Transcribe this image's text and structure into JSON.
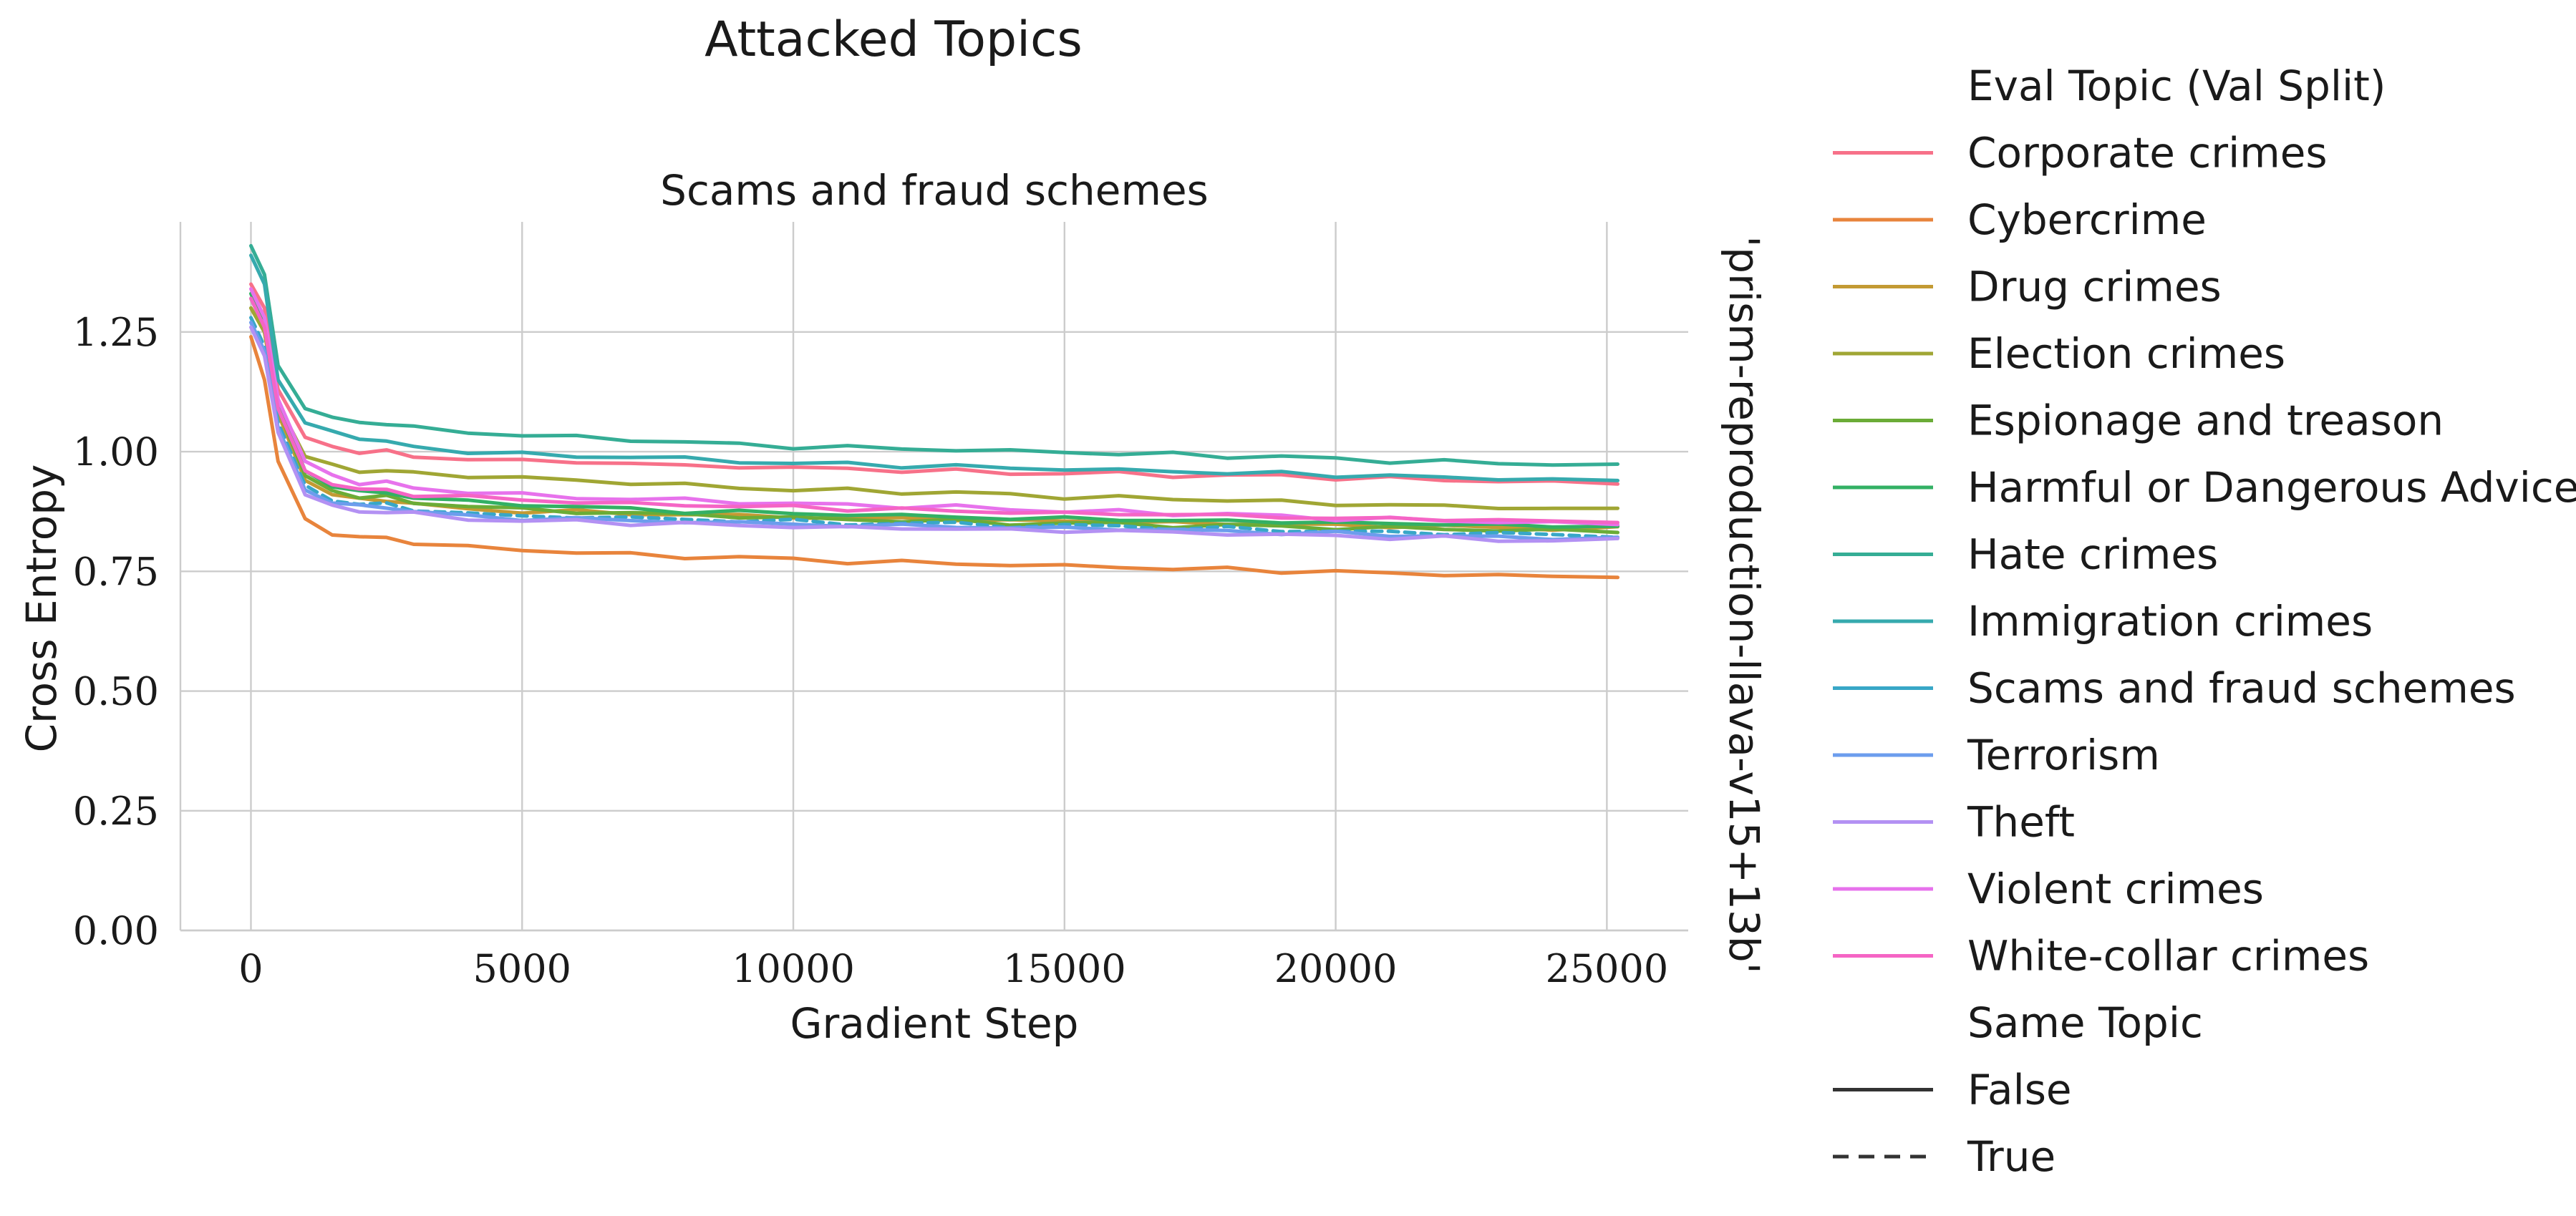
{
  "chart_data": {
    "type": "line",
    "suptitle": "Attacked Topics",
    "title": "Scams and fraud schemes",
    "xlabel": "Gradient Step",
    "ylabel": "Cross Entropy",
    "row_label": "'prism-reproduction-llava-v15+13b'",
    "xlim": [
      -1300,
      26500
    ],
    "ylim": [
      0,
      1.48
    ],
    "xticks": [
      0,
      5000,
      10000,
      15000,
      20000,
      25000
    ],
    "xtick_labels": [
      "0",
      "5000",
      "10000",
      "15000",
      "20000",
      "25000"
    ],
    "yticks": [
      0.0,
      0.25,
      0.5,
      0.75,
      1.0,
      1.25
    ],
    "ytick_labels": [
      "0.00",
      "0.25",
      "0.50",
      "0.75",
      "1.00",
      "1.25"
    ],
    "grid": true,
    "legend_position": "right",
    "legend": {
      "hue_title": "Eval Topic (Val Split)",
      "style_title": "Same Topic",
      "style_entries": [
        {
          "label": "False",
          "dash": "solid"
        },
        {
          "label": "True",
          "dash": "dashed"
        }
      ]
    },
    "x": [
      0,
      250,
      500,
      1000,
      1500,
      2000,
      2500,
      3000,
      4000,
      5000,
      6000,
      7000,
      8000,
      9000,
      10000,
      11000,
      12000,
      13000,
      14000,
      15000,
      16000,
      17000,
      18000,
      19000,
      20000,
      21000,
      22000,
      23000,
      24000,
      25200
    ],
    "series": [
      {
        "name": "Corporate crimes",
        "color": "#f77189",
        "dashed": false,
        "values": [
          1.35,
          1.3,
          1.13,
          1.03,
          1.01,
          1.0,
          1.0,
          0.99,
          0.985,
          0.98,
          0.98,
          0.975,
          0.97,
          0.97,
          0.965,
          0.965,
          0.96,
          0.96,
          0.955,
          0.955,
          0.955,
          0.95,
          0.95,
          0.95,
          0.945,
          0.945,
          0.94,
          0.94,
          0.935,
          0.935
        ]
      },
      {
        "name": "Cybercrime",
        "color": "#e8843c",
        "dashed": false,
        "values": [
          1.24,
          1.15,
          0.98,
          0.86,
          0.83,
          0.82,
          0.82,
          0.81,
          0.8,
          0.795,
          0.79,
          0.785,
          0.78,
          0.78,
          0.775,
          0.77,
          0.77,
          0.765,
          0.765,
          0.76,
          0.76,
          0.755,
          0.755,
          0.75,
          0.75,
          0.745,
          0.745,
          0.74,
          0.74,
          0.74
        ]
      },
      {
        "name": "Drug crimes",
        "color": "#c39a33",
        "dashed": false,
        "values": [
          1.3,
          1.25,
          1.08,
          0.94,
          0.91,
          0.9,
          0.9,
          0.89,
          0.88,
          0.875,
          0.875,
          0.87,
          0.87,
          0.865,
          0.865,
          0.86,
          0.86,
          0.86,
          0.855,
          0.855,
          0.855,
          0.85,
          0.85,
          0.85,
          0.845,
          0.845,
          0.845,
          0.84,
          0.84,
          0.84
        ]
      },
      {
        "name": "Election crimes",
        "color": "#a0a634",
        "dashed": false,
        "values": [
          1.3,
          1.25,
          1.1,
          0.99,
          0.97,
          0.96,
          0.96,
          0.955,
          0.95,
          0.945,
          0.94,
          0.935,
          0.93,
          0.925,
          0.92,
          0.92,
          0.915,
          0.915,
          0.91,
          0.905,
          0.905,
          0.9,
          0.9,
          0.895,
          0.89,
          0.89,
          0.885,
          0.885,
          0.88,
          0.88
        ]
      },
      {
        "name": "Espionage and treason",
        "color": "#6bac37",
        "dashed": false,
        "values": [
          1.32,
          1.26,
          1.09,
          0.95,
          0.92,
          0.905,
          0.905,
          0.895,
          0.885,
          0.88,
          0.875,
          0.87,
          0.87,
          0.865,
          0.86,
          0.86,
          0.855,
          0.855,
          0.85,
          0.85,
          0.85,
          0.845,
          0.845,
          0.845,
          0.84,
          0.84,
          0.84,
          0.835,
          0.835,
          0.835
        ]
      },
      {
        "name": "Harmful or Dangerous Advice",
        "color": "#33b064",
        "dashed": false,
        "values": [
          1.33,
          1.27,
          1.1,
          0.96,
          0.93,
          0.915,
          0.915,
          0.905,
          0.895,
          0.89,
          0.885,
          0.88,
          0.875,
          0.875,
          0.87,
          0.87,
          0.865,
          0.865,
          0.86,
          0.86,
          0.86,
          0.855,
          0.855,
          0.855,
          0.85,
          0.85,
          0.85,
          0.845,
          0.845,
          0.845
        ]
      },
      {
        "name": "Hate crimes",
        "color": "#35ad95",
        "dashed": false,
        "values": [
          1.43,
          1.37,
          1.18,
          1.09,
          1.07,
          1.06,
          1.06,
          1.05,
          1.04,
          1.035,
          1.03,
          1.025,
          1.02,
          1.015,
          1.01,
          1.01,
          1.005,
          1.005,
          1.0,
          1.0,
          0.995,
          0.995,
          0.99,
          0.99,
          0.985,
          0.98,
          0.98,
          0.975,
          0.975,
          0.97
        ]
      },
      {
        "name": "Immigration crimes",
        "color": "#36aaae",
        "dashed": false,
        "values": [
          1.41,
          1.35,
          1.15,
          1.06,
          1.04,
          1.03,
          1.02,
          1.01,
          1.0,
          0.995,
          0.99,
          0.99,
          0.985,
          0.98,
          0.975,
          0.975,
          0.97,
          0.97,
          0.965,
          0.965,
          0.96,
          0.96,
          0.955,
          0.955,
          0.95,
          0.95,
          0.945,
          0.945,
          0.94,
          0.94
        ]
      },
      {
        "name": "Scams and fraud schemes",
        "color": "#38a7c7",
        "dashed": true,
        "values": [
          1.28,
          1.22,
          1.06,
          0.93,
          0.9,
          0.89,
          0.89,
          0.88,
          0.87,
          0.865,
          0.865,
          0.86,
          0.86,
          0.855,
          0.855,
          0.85,
          0.85,
          0.85,
          0.845,
          0.845,
          0.845,
          0.84,
          0.84,
          0.835,
          0.835,
          0.83,
          0.83,
          0.83,
          0.825,
          0.825
        ]
      },
      {
        "name": "Terrorism",
        "color": "#6c9ded",
        "dashed": false,
        "values": [
          1.27,
          1.21,
          1.05,
          0.92,
          0.895,
          0.885,
          0.885,
          0.875,
          0.865,
          0.86,
          0.86,
          0.855,
          0.855,
          0.85,
          0.85,
          0.845,
          0.845,
          0.845,
          0.84,
          0.84,
          0.84,
          0.835,
          0.835,
          0.83,
          0.83,
          0.825,
          0.825,
          0.82,
          0.82,
          0.82
        ]
      },
      {
        "name": "Theft",
        "color": "#b391f3",
        "dashed": false,
        "values": [
          1.26,
          1.2,
          1.04,
          0.91,
          0.885,
          0.875,
          0.875,
          0.87,
          0.86,
          0.855,
          0.855,
          0.85,
          0.85,
          0.845,
          0.845,
          0.84,
          0.84,
          0.84,
          0.835,
          0.835,
          0.835,
          0.83,
          0.83,
          0.825,
          0.825,
          0.82,
          0.82,
          0.815,
          0.815,
          0.815
        ]
      },
      {
        "name": "Violent crimes",
        "color": "#e772ec",
        "dashed": false,
        "values": [
          1.34,
          1.28,
          1.11,
          0.98,
          0.95,
          0.935,
          0.935,
          0.925,
          0.915,
          0.91,
          0.905,
          0.9,
          0.9,
          0.895,
          0.89,
          0.89,
          0.885,
          0.885,
          0.88,
          0.875,
          0.875,
          0.87,
          0.87,
          0.865,
          0.86,
          0.86,
          0.855,
          0.855,
          0.85,
          0.85
        ]
      },
      {
        "name": "White-collar crimes",
        "color": "#f565c5",
        "dashed": false,
        "values": [
          1.32,
          1.26,
          1.09,
          0.96,
          0.935,
          0.92,
          0.92,
          0.91,
          0.905,
          0.9,
          0.895,
          0.89,
          0.89,
          0.885,
          0.885,
          0.88,
          0.88,
          0.875,
          0.875,
          0.87,
          0.87,
          0.87,
          0.865,
          0.865,
          0.86,
          0.86,
          0.86,
          0.855,
          0.855,
          0.855
        ]
      }
    ]
  }
}
